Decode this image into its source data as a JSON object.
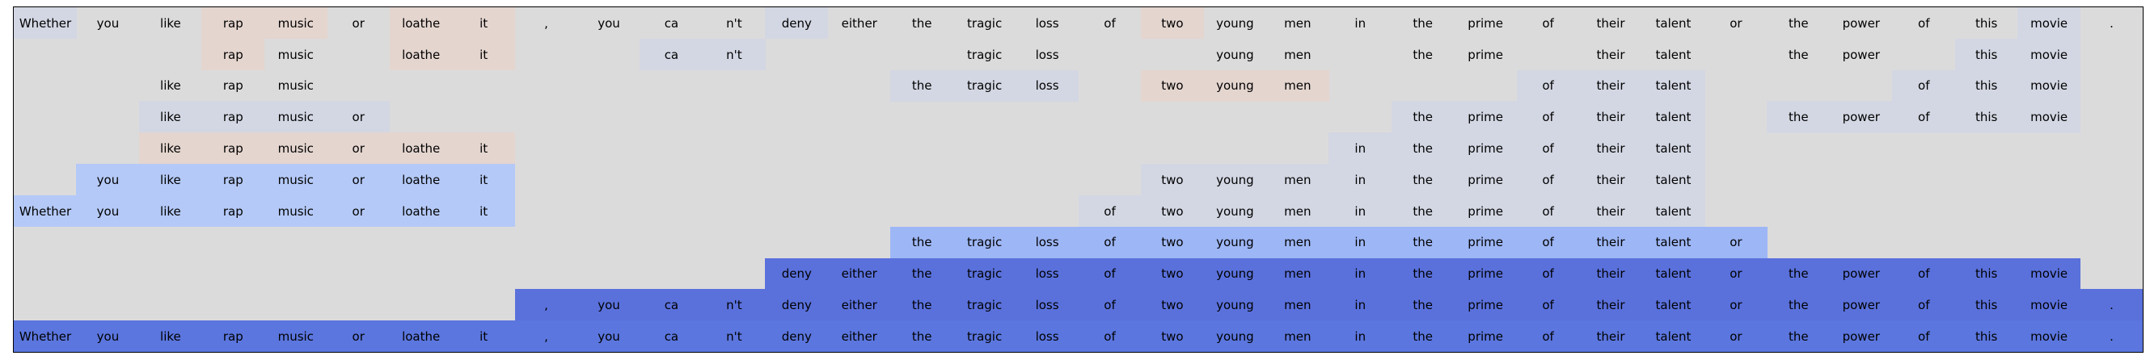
{
  "tokens": [
    "Whether",
    "you",
    "like",
    "rap",
    "music",
    "or",
    "loathe",
    "it",
    ",",
    "you",
    "ca",
    "n't",
    "deny",
    "either",
    "the",
    "tragic",
    "loss",
    "of",
    "two",
    "young",
    "men",
    "in",
    "the",
    "prime",
    "of",
    "their",
    "talent",
    "or",
    "the",
    "power",
    "of",
    "this",
    "movie",
    "."
  ],
  "colors": {
    "background": "#dcdbdb",
    "light_blue": "#d3d7e3",
    "peach": "#e4d5cf",
    "sky_blue": "#b4c9f7",
    "periwinkle": "#9db6f6",
    "deep_blue": "#5a71dc",
    "royal_blue": "#5b76de"
  },
  "rows": [
    {
      "visible": [
        0,
        1,
        2,
        3,
        4,
        5,
        6,
        7,
        8,
        9,
        10,
        11,
        12,
        13,
        14,
        15,
        16,
        17,
        18,
        19,
        20,
        21,
        22,
        23,
        24,
        25,
        26,
        27,
        28,
        29,
        30,
        31,
        32,
        33
      ],
      "shaded": {
        "0": "light_blue",
        "3": "peach",
        "4": "peach",
        "6": "peach",
        "7": "peach",
        "12": "light_blue",
        "18": "peach",
        "32": "light_blue"
      }
    },
    {
      "visible": [
        3,
        4,
        6,
        7,
        10,
        11,
        15,
        16,
        19,
        20,
        22,
        23,
        25,
        26,
        28,
        29,
        31,
        32
      ],
      "shaded": {
        "3": "peach",
        "6": "peach",
        "7": "peach",
        "10": "light_blue",
        "11": "light_blue",
        "31": "light_blue",
        "32": "light_blue"
      }
    },
    {
      "visible": [
        2,
        3,
        4,
        14,
        15,
        16,
        18,
        19,
        20,
        24,
        25,
        26,
        30,
        31,
        32
      ],
      "shaded": {
        "14": "light_blue",
        "15": "light_blue",
        "16": "light_blue",
        "18": "peach",
        "19": "peach",
        "20": "peach",
        "24": "light_blue",
        "25": "light_blue",
        "26": "light_blue",
        "30": "light_blue",
        "31": "light_blue",
        "32": "light_blue"
      }
    },
    {
      "visible": [
        2,
        3,
        4,
        5,
        22,
        23,
        24,
        25,
        26,
        28,
        29,
        30,
        31,
        32
      ],
      "shaded": {
        "2": "light_blue",
        "3": "light_blue",
        "4": "light_blue",
        "5": "light_blue",
        "22": "light_blue",
        "23": "light_blue",
        "24": "light_blue",
        "25": "light_blue",
        "26": "light_blue",
        "28": "light_blue",
        "29": "light_blue",
        "30": "light_blue",
        "31": "light_blue",
        "32": "light_blue"
      }
    },
    {
      "visible": [
        2,
        3,
        4,
        5,
        6,
        7,
        21,
        22,
        23,
        24,
        25,
        26
      ],
      "shaded": {
        "2": "peach",
        "3": "peach",
        "4": "peach",
        "5": "peach",
        "6": "peach",
        "7": "peach",
        "21": "light_blue",
        "22": "light_blue",
        "23": "light_blue",
        "24": "light_blue",
        "25": "light_blue",
        "26": "light_blue"
      }
    },
    {
      "visible": [
        1,
        2,
        3,
        4,
        5,
        6,
        7,
        18,
        19,
        20,
        21,
        22,
        23,
        24,
        25,
        26
      ],
      "shaded": {
        "1": "sky_blue",
        "2": "sky_blue",
        "3": "sky_blue",
        "4": "sky_blue",
        "5": "sky_blue",
        "6": "sky_blue",
        "7": "sky_blue",
        "18": "light_blue",
        "19": "light_blue",
        "20": "light_blue",
        "21": "light_blue",
        "22": "light_blue",
        "23": "light_blue",
        "24": "light_blue",
        "25": "light_blue",
        "26": "light_blue"
      }
    },
    {
      "visible": [
        0,
        1,
        2,
        3,
        4,
        5,
        6,
        7,
        17,
        18,
        19,
        20,
        21,
        22,
        23,
        24,
        25,
        26
      ],
      "shaded": {
        "0": "sky_blue",
        "1": "sky_blue",
        "2": "sky_blue",
        "3": "sky_blue",
        "4": "sky_blue",
        "5": "sky_blue",
        "6": "sky_blue",
        "7": "sky_blue",
        "17": "light_blue",
        "18": "light_blue",
        "19": "light_blue",
        "20": "light_blue",
        "21": "light_blue",
        "22": "light_blue",
        "23": "light_blue",
        "24": "light_blue",
        "25": "light_blue",
        "26": "light_blue"
      }
    },
    {
      "visible": [
        14,
        15,
        16,
        17,
        18,
        19,
        20,
        21,
        22,
        23,
        24,
        25,
        26,
        27
      ],
      "shaded": {
        "14": "periwinkle",
        "15": "periwinkle",
        "16": "periwinkle",
        "17": "periwinkle",
        "18": "periwinkle",
        "19": "periwinkle",
        "20": "periwinkle",
        "21": "periwinkle",
        "22": "periwinkle",
        "23": "periwinkle",
        "24": "periwinkle",
        "25": "periwinkle",
        "26": "periwinkle",
        "27": "periwinkle"
      }
    },
    {
      "visible": [
        12,
        13,
        14,
        15,
        16,
        17,
        18,
        19,
        20,
        21,
        22,
        23,
        24,
        25,
        26,
        27,
        28,
        29,
        30,
        31,
        32
      ],
      "shaded": {
        "12": "deep_blue",
        "13": "deep_blue",
        "14": "deep_blue",
        "15": "deep_blue",
        "16": "deep_blue",
        "17": "deep_blue",
        "18": "deep_blue",
        "19": "deep_blue",
        "20": "deep_blue",
        "21": "deep_blue",
        "22": "deep_blue",
        "23": "deep_blue",
        "24": "deep_blue",
        "25": "deep_blue",
        "26": "deep_blue",
        "27": "deep_blue",
        "28": "deep_blue",
        "29": "deep_blue",
        "30": "deep_blue",
        "31": "deep_blue",
        "32": "deep_blue"
      }
    },
    {
      "visible": [
        8,
        9,
        10,
        11,
        12,
        13,
        14,
        15,
        16,
        17,
        18,
        19,
        20,
        21,
        22,
        23,
        24,
        25,
        26,
        27,
        28,
        29,
        30,
        31,
        32,
        33
      ],
      "shaded": {
        "8": "deep_blue",
        "9": "deep_blue",
        "10": "deep_blue",
        "11": "deep_blue",
        "12": "deep_blue",
        "13": "deep_blue",
        "14": "deep_blue",
        "15": "deep_blue",
        "16": "deep_blue",
        "17": "deep_blue",
        "18": "deep_blue",
        "19": "deep_blue",
        "20": "deep_blue",
        "21": "deep_blue",
        "22": "deep_blue",
        "23": "deep_blue",
        "24": "deep_blue",
        "25": "deep_blue",
        "26": "deep_blue",
        "27": "deep_blue",
        "28": "deep_blue",
        "29": "deep_blue",
        "30": "deep_blue",
        "31": "deep_blue",
        "32": "deep_blue",
        "33": "deep_blue"
      }
    },
    {
      "visible": [
        0,
        1,
        2,
        3,
        4,
        5,
        6,
        7,
        8,
        9,
        10,
        11,
        12,
        13,
        14,
        15,
        16,
        17,
        18,
        19,
        20,
        21,
        22,
        23,
        24,
        25,
        26,
        27,
        28,
        29,
        30,
        31,
        32,
        33
      ],
      "shaded": {
        "0": "royal_blue",
        "1": "royal_blue",
        "2": "royal_blue",
        "3": "royal_blue",
        "4": "royal_blue",
        "5": "royal_blue",
        "6": "royal_blue",
        "7": "royal_blue",
        "8": "royal_blue",
        "9": "royal_blue",
        "10": "royal_blue",
        "11": "royal_blue",
        "12": "royal_blue",
        "13": "royal_blue",
        "14": "royal_blue",
        "15": "royal_blue",
        "16": "royal_blue",
        "17": "royal_blue",
        "18": "royal_blue",
        "19": "royal_blue",
        "20": "royal_blue",
        "21": "royal_blue",
        "22": "royal_blue",
        "23": "royal_blue",
        "24": "royal_blue",
        "25": "royal_blue",
        "26": "royal_blue",
        "27": "royal_blue",
        "28": "royal_blue",
        "29": "royal_blue",
        "30": "royal_blue",
        "31": "royal_blue",
        "32": "royal_blue",
        "33": "royal_blue"
      }
    }
  ]
}
